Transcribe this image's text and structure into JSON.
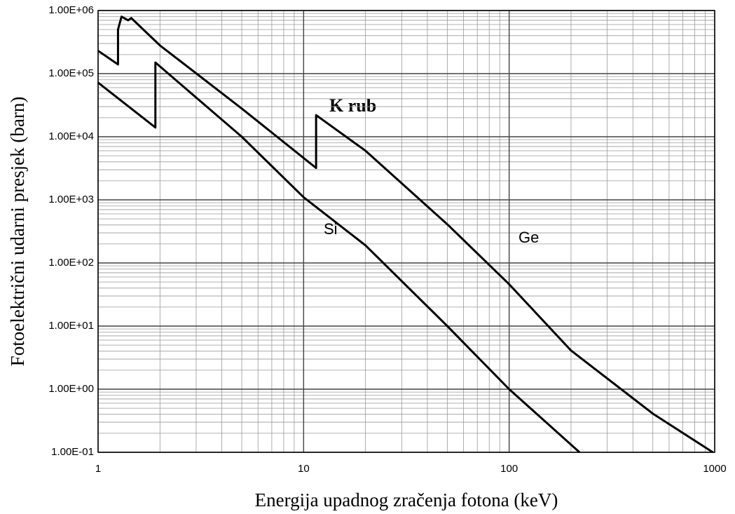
{
  "chart_data": {
    "type": "line",
    "x_label": "Energija upadnog zračenja fotona (keV)",
    "y_label": "Fotoelektrični udarni presjek (barn)",
    "annotations": [
      "K rub"
    ],
    "xlog": true,
    "ylog": true,
    "grid": true,
    "xlim": [
      1,
      1000
    ],
    "xticks": [
      1,
      10,
      100,
      1000
    ],
    "ylim": [
      0.1,
      1000000
    ],
    "yticks": [
      {
        "value": 0.1,
        "label": "1.00E-01"
      },
      {
        "value": 1,
        "label": "1.00E+00"
      },
      {
        "value": 10,
        "label": "1.00E+01"
      },
      {
        "value": 100,
        "label": "1.00E+02"
      },
      {
        "value": 1000,
        "label": "1.00E+03"
      },
      {
        "value": 10000,
        "label": "1.00E+04"
      },
      {
        "value": 100000,
        "label": "1.00E+05"
      },
      {
        "value": 1000000,
        "label": "1.00E+06"
      }
    ],
    "series": [
      {
        "name": "Ge",
        "color": "#000000",
        "x": [
          1,
          1.25,
          1.25,
          1.3,
          1.4,
          1.45,
          2,
          5,
          11.5,
          11.5,
          20,
          50,
          100,
          200,
          500,
          980
        ],
        "values": [
          230000,
          140000,
          500000,
          800000,
          700000,
          760000,
          280000,
          28000,
          3200,
          22000,
          6000,
          410,
          46,
          4.1,
          0.41,
          0.1
        ]
      },
      {
        "name": "Si",
        "color": "#000000",
        "x": [
          1,
          1.9,
          1.9,
          5,
          10,
          20,
          50,
          100,
          220
        ],
        "values": [
          72000,
          14000,
          150000,
          10000,
          1100,
          190,
          10,
          1,
          0.1
        ]
      }
    ]
  }
}
